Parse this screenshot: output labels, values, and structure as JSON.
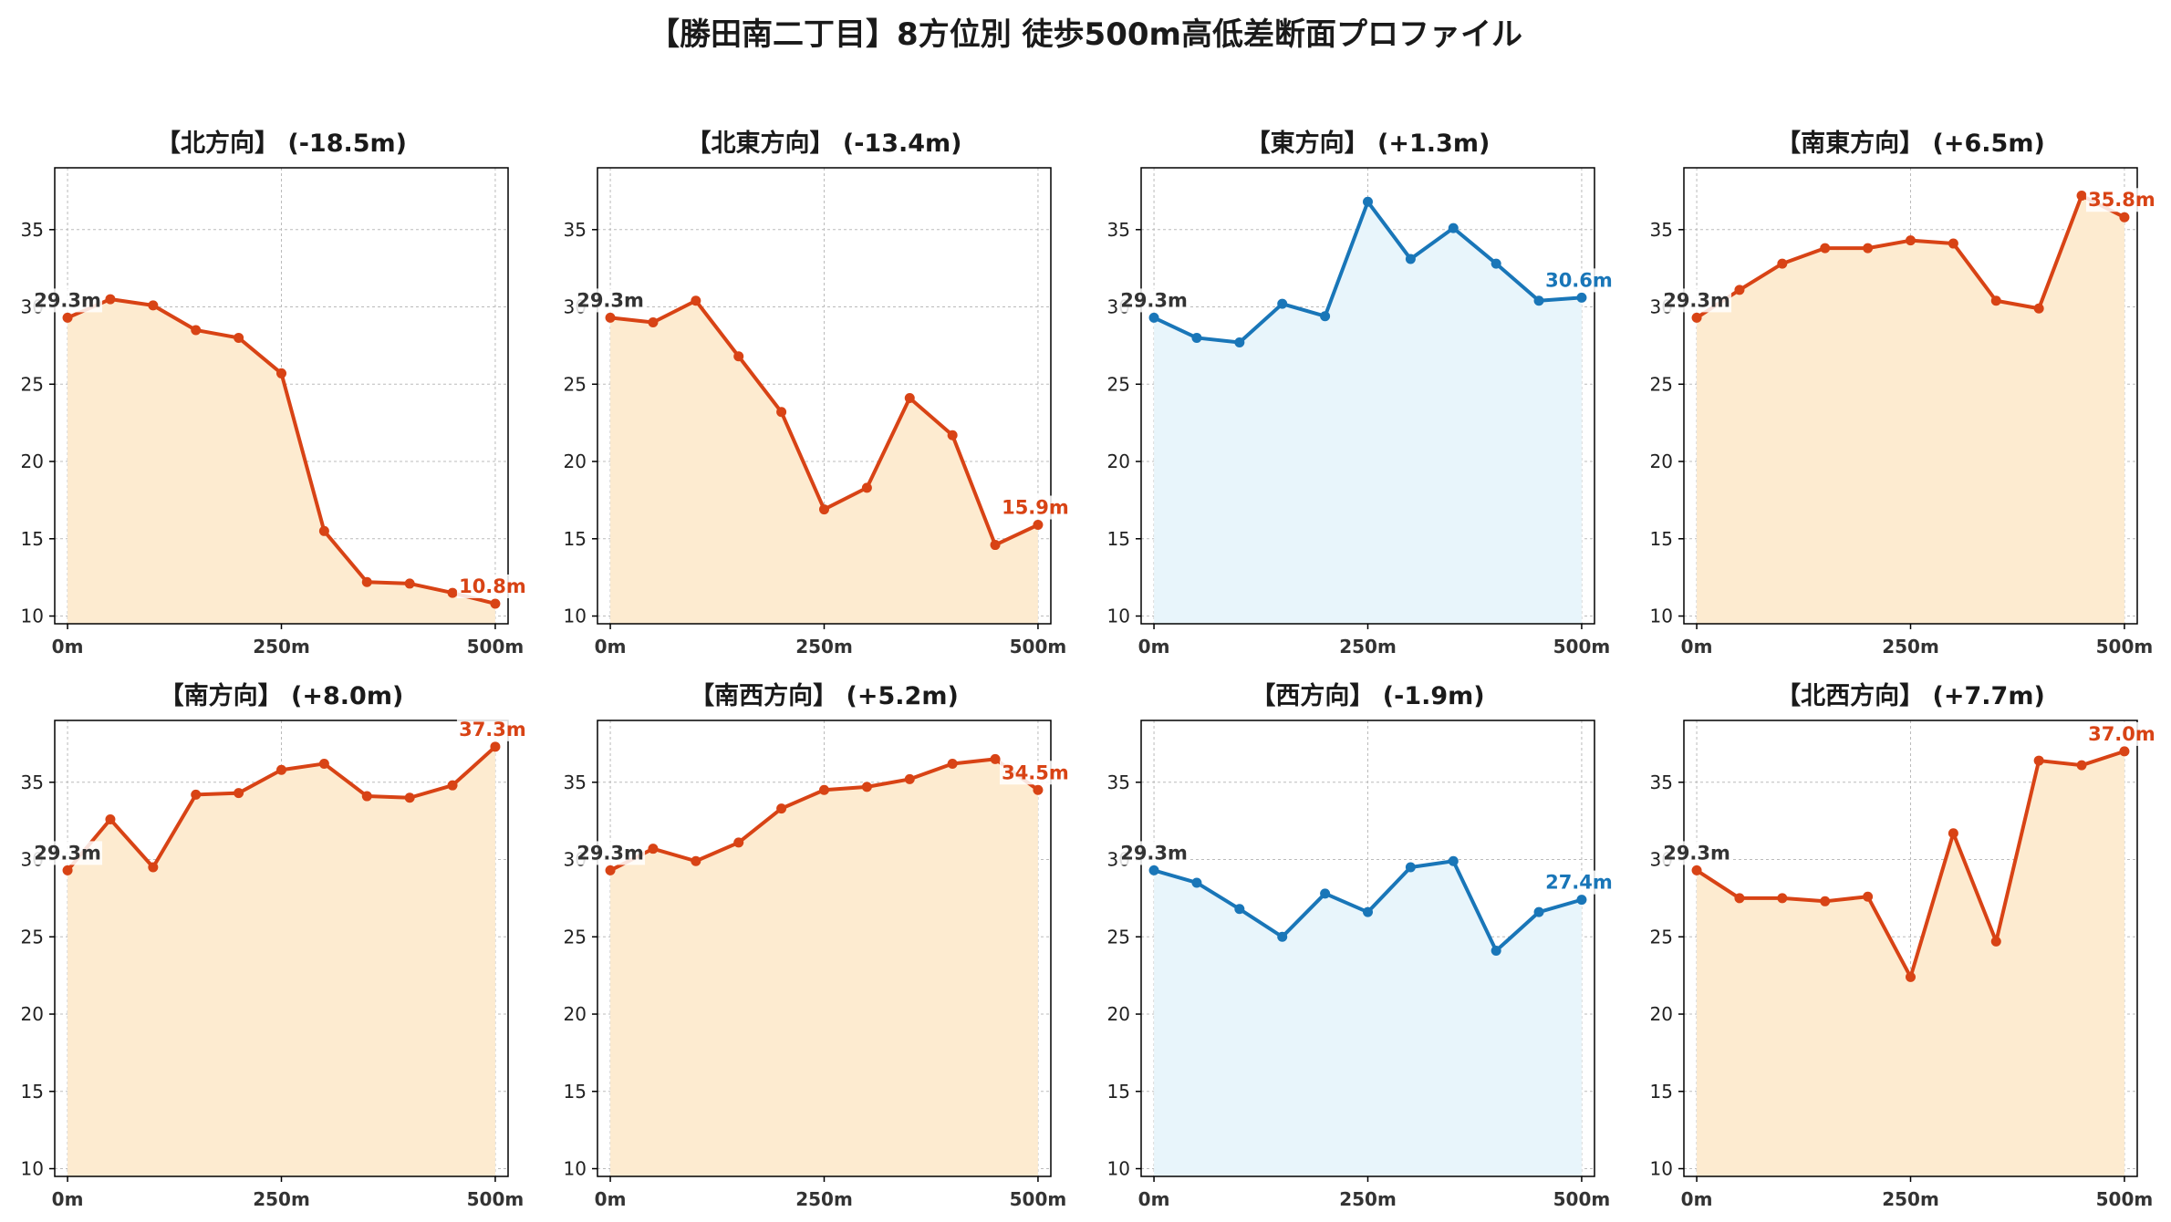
{
  "title": "【勝田南二丁目】8方位別 徒歩500m高低差断面プロファイル",
  "colors": {
    "down_line": "#d84315",
    "down_fill": "#fdebd0",
    "up_line": "#1976b8",
    "up_fill": "#e8f5fb",
    "start_label": "#333333",
    "grid": "#bbbbbb"
  },
  "chart_data": [
    {
      "type": "area",
      "title": "【北方向】 (-18.5m)",
      "scheme": "down",
      "x": [
        0,
        50,
        100,
        150,
        200,
        250,
        300,
        350,
        400,
        450,
        500
      ],
      "y": [
        29.3,
        30.5,
        30.1,
        28.5,
        28.0,
        25.7,
        15.5,
        12.2,
        12.1,
        11.5,
        10.8
      ],
      "start_label": "29.3m",
      "end_label": "10.8m",
      "xticks": [
        "0m",
        "250m",
        "500m"
      ],
      "yticks": [
        "10",
        "15",
        "20",
        "25",
        "30",
        "35"
      ],
      "xlim": [
        -15,
        515
      ],
      "ylim": [
        9.5,
        39
      ]
    },
    {
      "type": "area",
      "title": "【北東方向】 (-13.4m)",
      "scheme": "down",
      "x": [
        0,
        50,
        100,
        150,
        200,
        250,
        300,
        350,
        400,
        450,
        500
      ],
      "y": [
        29.3,
        29.0,
        30.4,
        26.8,
        23.2,
        16.9,
        18.3,
        24.1,
        21.7,
        14.6,
        15.9
      ],
      "start_label": "29.3m",
      "end_label": "15.9m",
      "xticks": [
        "0m",
        "250m",
        "500m"
      ],
      "yticks": [
        "10",
        "15",
        "20",
        "25",
        "30",
        "35"
      ],
      "xlim": [
        -15,
        515
      ],
      "ylim": [
        9.5,
        39
      ]
    },
    {
      "type": "area",
      "title": "【東方向】 (+1.3m)",
      "scheme": "up",
      "x": [
        0,
        50,
        100,
        150,
        200,
        250,
        300,
        350,
        400,
        450,
        500
      ],
      "y": [
        29.3,
        28.0,
        27.7,
        30.2,
        29.4,
        36.8,
        33.1,
        35.1,
        32.8,
        30.4,
        30.6
      ],
      "start_label": "29.3m",
      "end_label": "30.6m",
      "xticks": [
        "0m",
        "250m",
        "500m"
      ],
      "yticks": [
        "10",
        "15",
        "20",
        "25",
        "30",
        "35"
      ],
      "xlim": [
        -15,
        515
      ],
      "ylim": [
        9.5,
        39
      ]
    },
    {
      "type": "area",
      "title": "【南東方向】 (+6.5m)",
      "scheme": "down",
      "x": [
        0,
        50,
        100,
        150,
        200,
        250,
        300,
        350,
        400,
        450,
        500
      ],
      "y": [
        29.3,
        31.1,
        32.8,
        33.8,
        33.8,
        34.3,
        34.1,
        30.4,
        29.9,
        37.2,
        35.8
      ],
      "start_label": "29.3m",
      "end_label": "35.8m",
      "xticks": [
        "0m",
        "250m",
        "500m"
      ],
      "yticks": [
        "10",
        "15",
        "20",
        "25",
        "30",
        "35"
      ],
      "xlim": [
        -15,
        515
      ],
      "ylim": [
        9.5,
        39
      ]
    },
    {
      "type": "area",
      "title": "【南方向】 (+8.0m)",
      "scheme": "down",
      "x": [
        0,
        50,
        100,
        150,
        200,
        250,
        300,
        350,
        400,
        450,
        500
      ],
      "y": [
        29.3,
        32.6,
        29.5,
        34.2,
        34.3,
        35.8,
        36.2,
        34.1,
        34.0,
        34.8,
        37.3
      ],
      "start_label": "29.3m",
      "end_label": "37.3m",
      "xticks": [
        "0m",
        "250m",
        "500m"
      ],
      "yticks": [
        "10",
        "15",
        "20",
        "25",
        "30",
        "35"
      ],
      "xlim": [
        -15,
        515
      ],
      "ylim": [
        9.5,
        39
      ]
    },
    {
      "type": "area",
      "title": "【南西方向】 (+5.2m)",
      "scheme": "down",
      "x": [
        0,
        50,
        100,
        150,
        200,
        250,
        300,
        350,
        400,
        450,
        500
      ],
      "y": [
        29.3,
        30.7,
        29.9,
        31.1,
        33.3,
        34.5,
        34.7,
        35.2,
        36.2,
        36.5,
        34.5
      ],
      "start_label": "29.3m",
      "end_label": "34.5m",
      "xticks": [
        "0m",
        "250m",
        "500m"
      ],
      "yticks": [
        "10",
        "15",
        "20",
        "25",
        "30",
        "35"
      ],
      "xlim": [
        -15,
        515
      ],
      "ylim": [
        9.5,
        39
      ]
    },
    {
      "type": "area",
      "title": "【西方向】 (-1.9m)",
      "scheme": "up",
      "x": [
        0,
        50,
        100,
        150,
        200,
        250,
        300,
        350,
        400,
        450,
        500
      ],
      "y": [
        29.3,
        28.5,
        26.8,
        25.0,
        27.8,
        26.6,
        29.5,
        29.9,
        24.1,
        26.6,
        27.4
      ],
      "start_label": "29.3m",
      "end_label": "27.4m",
      "xticks": [
        "0m",
        "250m",
        "500m"
      ],
      "yticks": [
        "10",
        "15",
        "20",
        "25",
        "30",
        "35"
      ],
      "xlim": [
        -15,
        515
      ],
      "ylim": [
        9.5,
        39
      ]
    },
    {
      "type": "area",
      "title": "【北西方向】 (+7.7m)",
      "scheme": "down",
      "x": [
        0,
        50,
        100,
        150,
        200,
        250,
        300,
        350,
        400,
        450,
        500
      ],
      "y": [
        29.3,
        27.5,
        27.5,
        27.3,
        27.6,
        22.4,
        31.7,
        24.7,
        36.4,
        36.1,
        37.0
      ],
      "start_label": "29.3m",
      "end_label": "37.0m",
      "xticks": [
        "0m",
        "250m",
        "500m"
      ],
      "yticks": [
        "10",
        "15",
        "20",
        "25",
        "30",
        "35"
      ],
      "xlim": [
        -15,
        515
      ],
      "ylim": [
        9.5,
        39
      ]
    }
  ]
}
